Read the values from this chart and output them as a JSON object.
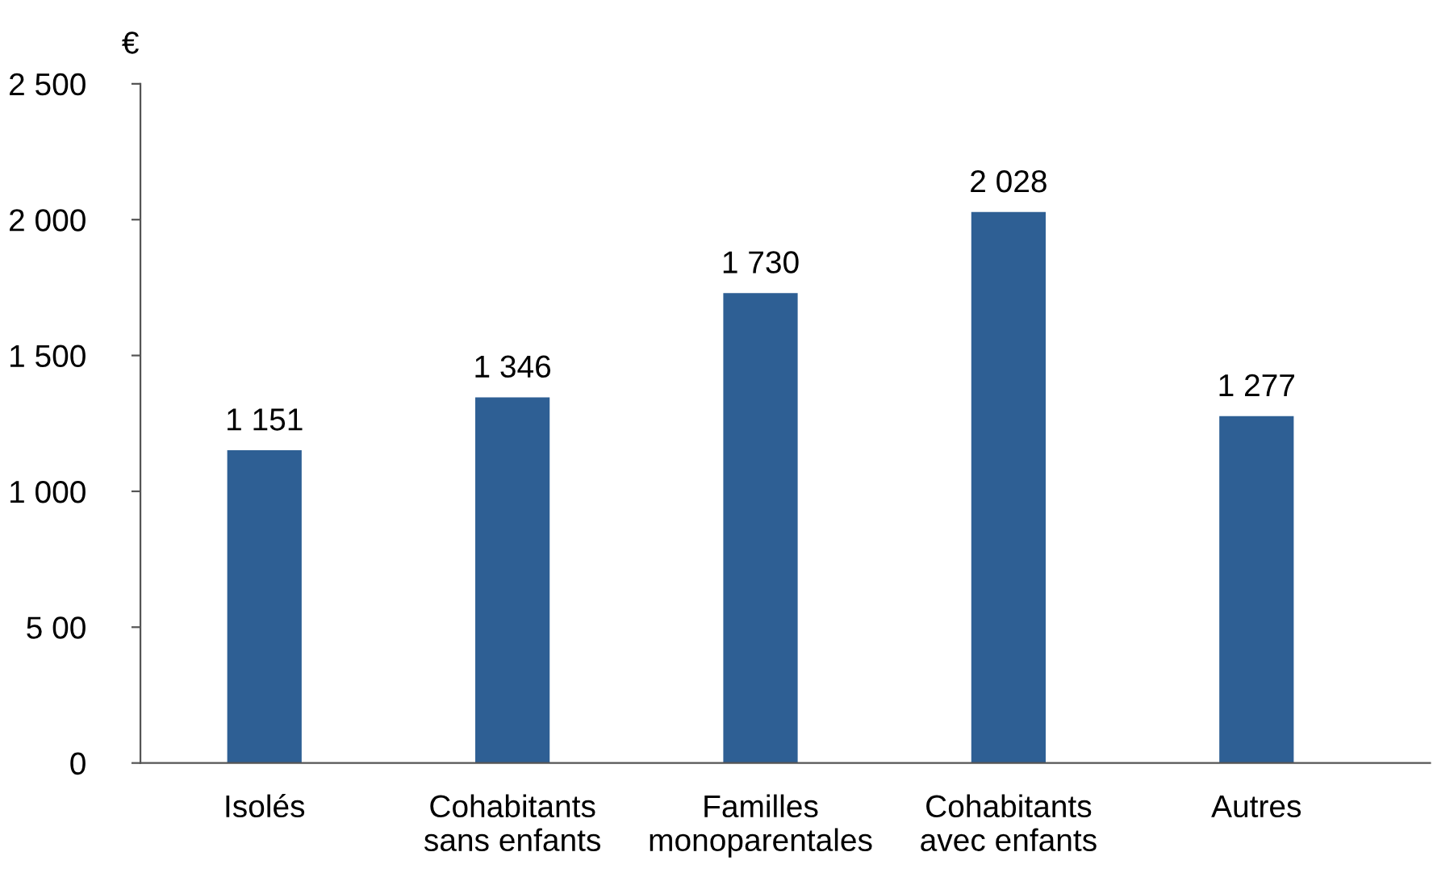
{
  "chart_data": {
    "type": "bar",
    "categories": [
      "Isolés",
      "Cohabitants\nsans enfants",
      "Familles\nmonoparentales",
      "Cohabitants\navec enfants",
      "Autres"
    ],
    "values": [
      1151,
      1346,
      1730,
      2028,
      1277
    ],
    "value_labels": [
      "1 151",
      "1 346",
      "1 730",
      "2 028",
      "1 277"
    ],
    "color": "#2e5f94",
    "ylabel": "€",
    "ylim": [
      0,
      2500
    ],
    "yticks": [
      0,
      {
        "value": 500,
        "label": "5 00"
      },
      {
        "value": 1000,
        "label": "1 000"
      },
      {
        "value": 1500,
        "label": "1 500"
      },
      {
        "value": 2000,
        "label": "2 000"
      },
      {
        "value": 2500,
        "label": "2 500"
      }
    ],
    "grid": false,
    "legend": false
  }
}
